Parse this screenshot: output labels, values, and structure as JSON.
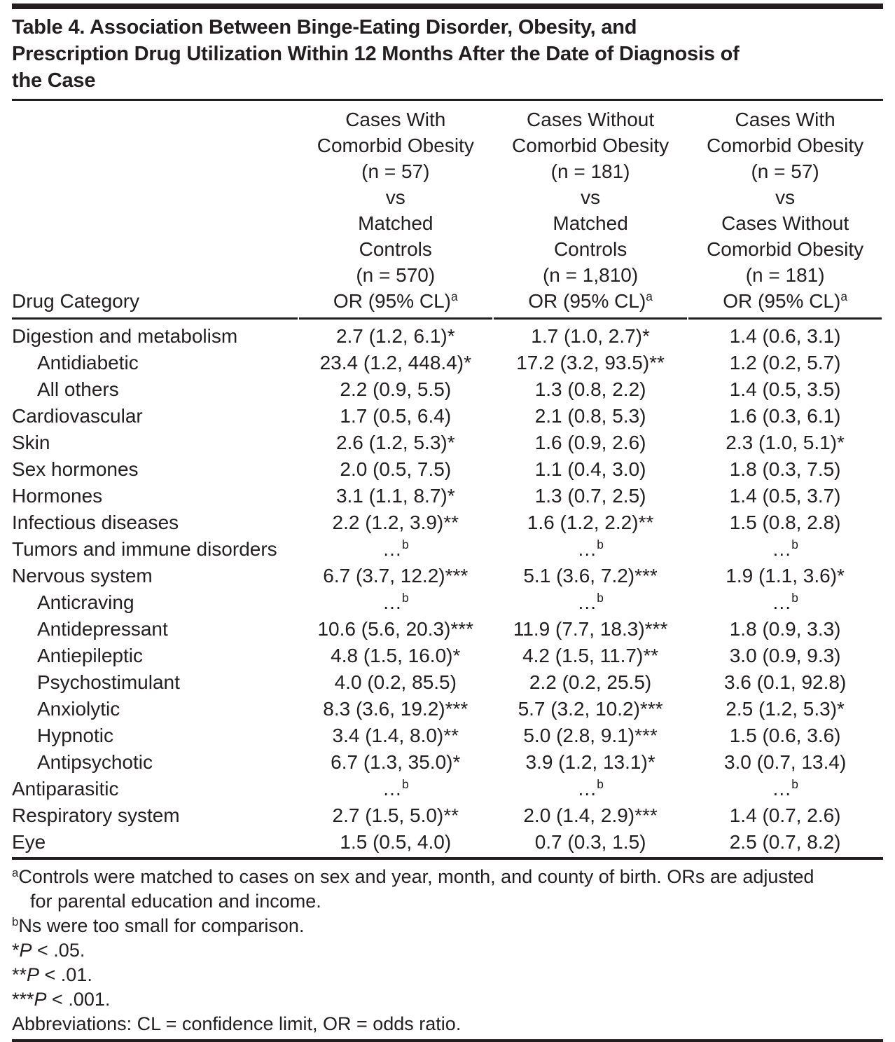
{
  "colors": {
    "text": "#231f20",
    "rule": "#231f20",
    "background": "#ffffff"
  },
  "title": {
    "lines": [
      "Table 4. Association Between Binge-Eating Disorder, Obesity, and",
      "Prescription Drug Utilization Within 12 Months After the Date of Diagnosis of",
      "the Case"
    ]
  },
  "table": {
    "row_header": "Drug Category",
    "columns": [
      {
        "lines": [
          "Cases With",
          "Comorbid Obesity",
          "(n = 57)",
          "vs",
          "Matched",
          "Controls",
          "(n = 570)"
        ],
        "or_label": "OR (95% CL)",
        "or_sup": "a"
      },
      {
        "lines": [
          "Cases Without",
          "Comorbid Obesity",
          "(n = 181)",
          "vs",
          "Matched",
          "Controls",
          "(n = 1,810)"
        ],
        "or_label": "OR (95% CL)",
        "or_sup": "a"
      },
      {
        "lines": [
          "Cases With",
          "Comorbid Obesity",
          "(n = 57)",
          "vs",
          "Cases Without",
          "Comorbid Obesity",
          "(n = 181)"
        ],
        "or_label": "OR (95% CL)",
        "or_sup": "a"
      }
    ],
    "rows": [
      {
        "label": "Digestion and metabolism",
        "indent": false,
        "values": [
          {
            "text": "2.7 (1.2, 6.1)*"
          },
          {
            "text": "1.7 (1.0, 2.7)*"
          },
          {
            "text": "1.4 (0.6, 3.1)"
          }
        ]
      },
      {
        "label": "Antidiabetic",
        "indent": true,
        "values": [
          {
            "text": "23.4 (1.2, 448.4)*"
          },
          {
            "text": "17.2 (3.2, 93.5)**"
          },
          {
            "text": "1.2 (0.2, 5.7)"
          }
        ]
      },
      {
        "label": "All others",
        "indent": true,
        "values": [
          {
            "text": "2.2 (0.9, 5.5)"
          },
          {
            "text": "1.3 (0.8, 2.2)"
          },
          {
            "text": "1.4 (0.5, 3.5)"
          }
        ]
      },
      {
        "label": "Cardiovascular",
        "indent": false,
        "values": [
          {
            "text": "1.7 (0.5, 6.4)"
          },
          {
            "text": "2.1 (0.8, 5.3)"
          },
          {
            "text": "1.6 (0.3, 6.1)"
          }
        ]
      },
      {
        "label": "Skin",
        "indent": false,
        "values": [
          {
            "text": "2.6 (1.2, 5.3)*"
          },
          {
            "text": "1.6 (0.9, 2.6)"
          },
          {
            "text": "2.3 (1.0, 5.1)*"
          }
        ]
      },
      {
        "label": "Sex hormones",
        "indent": false,
        "values": [
          {
            "text": "2.0 (0.5, 7.5)"
          },
          {
            "text": "1.1 (0.4, 3.0)"
          },
          {
            "text": "1.8 (0.3, 7.5)"
          }
        ]
      },
      {
        "label": "Hormones",
        "indent": false,
        "values": [
          {
            "text": "3.1 (1.1, 8.7)*"
          },
          {
            "text": "1.3 (0.7, 2.5)"
          },
          {
            "text": "1.4 (0.5, 3.7)"
          }
        ]
      },
      {
        "label": "Infectious diseases",
        "indent": false,
        "values": [
          {
            "text": "2.2 (1.2, 3.9)**"
          },
          {
            "text": "1.6 (1.2, 2.2)**"
          },
          {
            "text": "1.5 (0.8, 2.8)"
          }
        ]
      },
      {
        "label": "Tumors and immune disorders",
        "indent": false,
        "values": [
          {
            "text": "…",
            "sup": "b"
          },
          {
            "text": "…",
            "sup": "b"
          },
          {
            "text": "…",
            "sup": "b"
          }
        ]
      },
      {
        "label": "Nervous system",
        "indent": false,
        "values": [
          {
            "text": "6.7 (3.7, 12.2)***"
          },
          {
            "text": "5.1 (3.6, 7.2)***"
          },
          {
            "text": "1.9 (1.1, 3.6)*"
          }
        ]
      },
      {
        "label": "Anticraving",
        "indent": true,
        "values": [
          {
            "text": "…",
            "sup": "b"
          },
          {
            "text": "…",
            "sup": "b"
          },
          {
            "text": "…",
            "sup": "b"
          }
        ]
      },
      {
        "label": "Antidepressant",
        "indent": true,
        "values": [
          {
            "text": "10.6 (5.6, 20.3)***"
          },
          {
            "text": "11.9 (7.7, 18.3)***"
          },
          {
            "text": "1.8 (0.9, 3.3)"
          }
        ]
      },
      {
        "label": "Antiepileptic",
        "indent": true,
        "values": [
          {
            "text": "4.8 (1.5, 16.0)*"
          },
          {
            "text": "4.2 (1.5, 11.7)**"
          },
          {
            "text": "3.0 (0.9, 9.3)"
          }
        ]
      },
      {
        "label": "Psychostimulant",
        "indent": true,
        "values": [
          {
            "text": "4.0 (0.2, 85.5)"
          },
          {
            "text": "2.2 (0.2, 25.5)"
          },
          {
            "text": "3.6 (0.1, 92.8)"
          }
        ]
      },
      {
        "label": "Anxiolytic",
        "indent": true,
        "values": [
          {
            "text": "8.3 (3.6, 19.2)***"
          },
          {
            "text": "5.7 (3.2, 10.2)***"
          },
          {
            "text": "2.5 (1.2, 5.3)*"
          }
        ]
      },
      {
        "label": "Hypnotic",
        "indent": true,
        "values": [
          {
            "text": "3.4 (1.4, 8.0)**"
          },
          {
            "text": "5.0 (2.8, 9.1)***"
          },
          {
            "text": "1.5 (0.6, 3.6)"
          }
        ]
      },
      {
        "label": "Antipsychotic",
        "indent": true,
        "values": [
          {
            "text": "6.7 (1.3, 35.0)*"
          },
          {
            "text": "3.9 (1.2, 13.1)*"
          },
          {
            "text": "3.0 (0.7, 13.4)"
          }
        ]
      },
      {
        "label": "Antiparasitic",
        "indent": false,
        "values": [
          {
            "text": "…",
            "sup": "b"
          },
          {
            "text": "…",
            "sup": "b"
          },
          {
            "text": "…",
            "sup": "b"
          }
        ]
      },
      {
        "label": "Respiratory system",
        "indent": false,
        "values": [
          {
            "text": "2.7 (1.5, 5.0)**"
          },
          {
            "text": "2.0 (1.4, 2.9)***"
          },
          {
            "text": "1.4 (0.7, 2.6)"
          }
        ]
      },
      {
        "label": "Eye",
        "indent": false,
        "values": [
          {
            "text": "1.5 (0.5, 4.0)"
          },
          {
            "text": "0.7 (0.3, 1.5)"
          },
          {
            "text": "2.5 (0.7, 8.2)"
          }
        ]
      }
    ]
  },
  "footnotes": {
    "a": {
      "sup": "a",
      "line1": "Controls were matched to cases on sex and year, month, and county of birth. ORs are adjusted",
      "line2": "for parental education and income."
    },
    "b": {
      "sup": "b",
      "text": "Ns were too small for comparison."
    },
    "p05": {
      "stars": "*",
      "p": "P",
      "rest": " < .05."
    },
    "p01": {
      "stars": "**",
      "p": "P",
      "rest": " < .01."
    },
    "p001": {
      "stars": "***",
      "p": "P",
      "rest": " < .001."
    },
    "abbreviations": "Abbreviations: CL = confidence limit, OR = odds ratio."
  }
}
